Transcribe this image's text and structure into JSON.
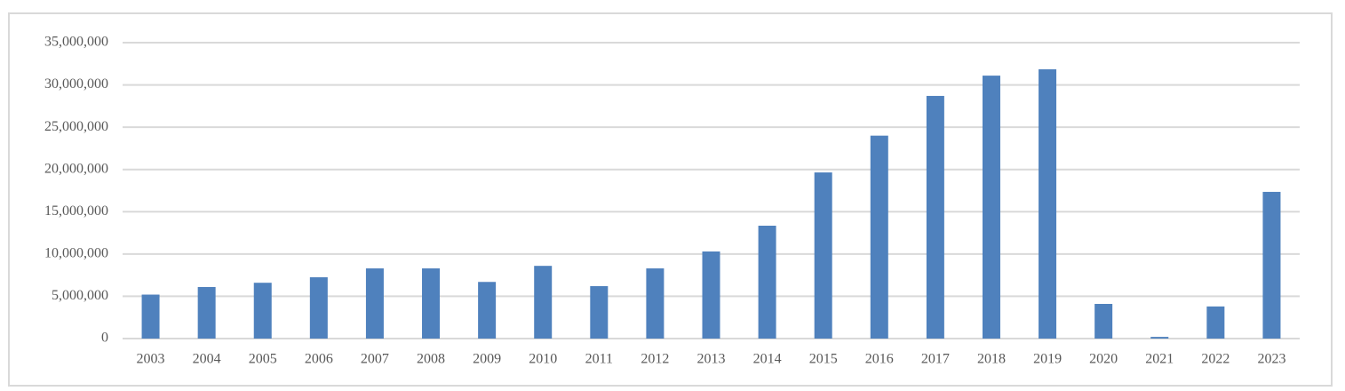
{
  "chart_data": {
    "type": "bar",
    "categories": [
      "2003",
      "2004",
      "2005",
      "2006",
      "2007",
      "2008",
      "2009",
      "2010",
      "2011",
      "2012",
      "2013",
      "2014",
      "2015",
      "2016",
      "2017",
      "2018",
      "2019",
      "2020",
      "2021",
      "2022",
      "2023"
    ],
    "values": [
      5200000,
      6100000,
      6600000,
      7250000,
      8300000,
      8300000,
      6700000,
      8600000,
      6200000,
      8300000,
      10300000,
      13350000,
      19650000,
      24000000,
      28700000,
      31100000,
      31850000,
      4100000,
      200000,
      3800000,
      17350000
    ],
    "color": "#4f81bd",
    "ylim": [
      0,
      35000000
    ],
    "yticks": [
      0,
      {
        "value": 5000000,
        "label": "5,000,000"
      },
      {
        "value": 10000000,
        "label": "10,000,000"
      },
      {
        "value": 15000000,
        "label": "15,000,000"
      },
      {
        "value": 20000000,
        "label": "20,000,000"
      },
      {
        "value": 25000000,
        "label": "25,000,000"
      },
      {
        "value": 30000000,
        "label": "30,000,000"
      },
      {
        "value": 35000000,
        "label": "35,000,000"
      }
    ],
    "grid": true
  }
}
